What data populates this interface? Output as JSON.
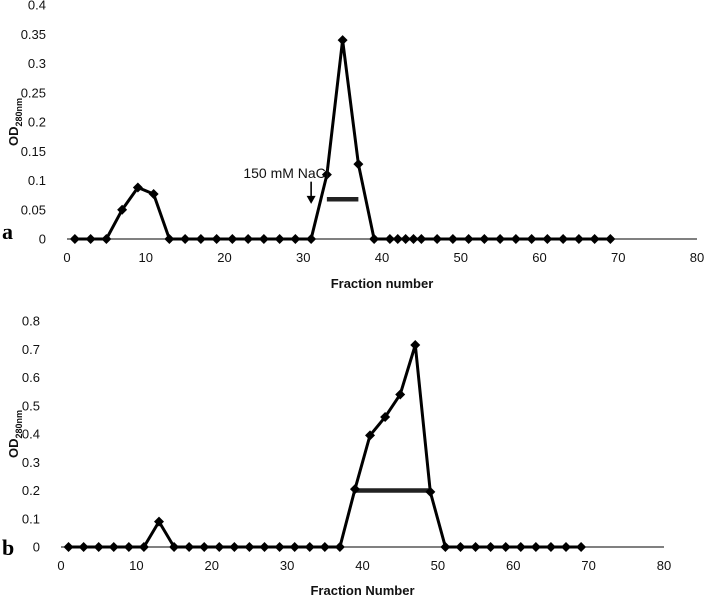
{
  "chart_data": [
    {
      "type": "line",
      "panel_label": "a",
      "xlabel": "Fraction number",
      "ylabel": "OD",
      "ylabel_sub": "280nm",
      "xlim": [
        0,
        80
      ],
      "ylim": [
        0,
        0.4
      ],
      "x_ticks": [
        "0",
        "10",
        "20",
        "30",
        "40",
        "50",
        "60",
        "70",
        "80"
      ],
      "y_ticks": [
        "0",
        "0.05",
        "0.1",
        "0.15",
        "0.2",
        "0.25",
        "0.3",
        "0.35",
        "0.4"
      ],
      "grid": false,
      "series": [
        {
          "x": [
            1,
            3,
            5,
            7,
            9,
            11,
            13,
            15,
            17,
            19,
            21,
            23,
            25,
            27,
            29,
            31,
            33,
            35,
            37,
            39,
            41,
            42,
            43,
            44,
            45,
            47,
            49,
            51,
            53,
            55,
            57,
            59,
            61,
            63,
            65,
            67,
            69
          ],
          "y": [
            0,
            0,
            0,
            0.05,
            0.088,
            0.077,
            0,
            0,
            0,
            0,
            0,
            0,
            0,
            0,
            0,
            0,
            0.11,
            0.34,
            0.128,
            0,
            0,
            0,
            0,
            0,
            0,
            0,
            0,
            0,
            0,
            0,
            0,
            0,
            0,
            0,
            0,
            0,
            0
          ]
        }
      ],
      "annotation": {
        "text": "150 mM NaCl",
        "x": 31,
        "y": 0.07
      },
      "pool_bar": {
        "x_start": 33,
        "x_end": 37,
        "y": 0.068
      }
    },
    {
      "type": "line",
      "panel_label": "b",
      "xlabel": "Fraction Number",
      "ylabel": "OD",
      "ylabel_sub": "280nm",
      "xlim": [
        0,
        80
      ],
      "ylim": [
        0,
        0.8
      ],
      "x_ticks": [
        "0",
        "10",
        "20",
        "30",
        "40",
        "50",
        "60",
        "70",
        "80"
      ],
      "y_ticks": [
        "0",
        "0.1",
        "0.2",
        "0.3",
        "0.4",
        "0.5",
        "0.6",
        "0.7",
        "0.8"
      ],
      "grid": false,
      "series": [
        {
          "x": [
            1,
            3,
            5,
            7,
            9,
            11,
            13,
            15,
            17,
            19,
            21,
            23,
            25,
            27,
            29,
            31,
            33,
            35,
            37,
            39,
            41,
            43,
            45,
            47,
            49,
            51,
            53,
            55,
            57,
            59,
            61,
            63,
            65,
            67,
            69
          ],
          "y": [
            0,
            0,
            0,
            0,
            0,
            0,
            0.09,
            0,
            0,
            0,
            0,
            0,
            0,
            0,
            0,
            0,
            0,
            0,
            0,
            0.205,
            0.395,
            0.46,
            0.54,
            0.715,
            0.195,
            0,
            0,
            0,
            0,
            0,
            0,
            0,
            0,
            0,
            0
          ]
        }
      ],
      "pool_bar": {
        "x_start": 39,
        "x_end": 49,
        "y": 0.2
      }
    }
  ]
}
